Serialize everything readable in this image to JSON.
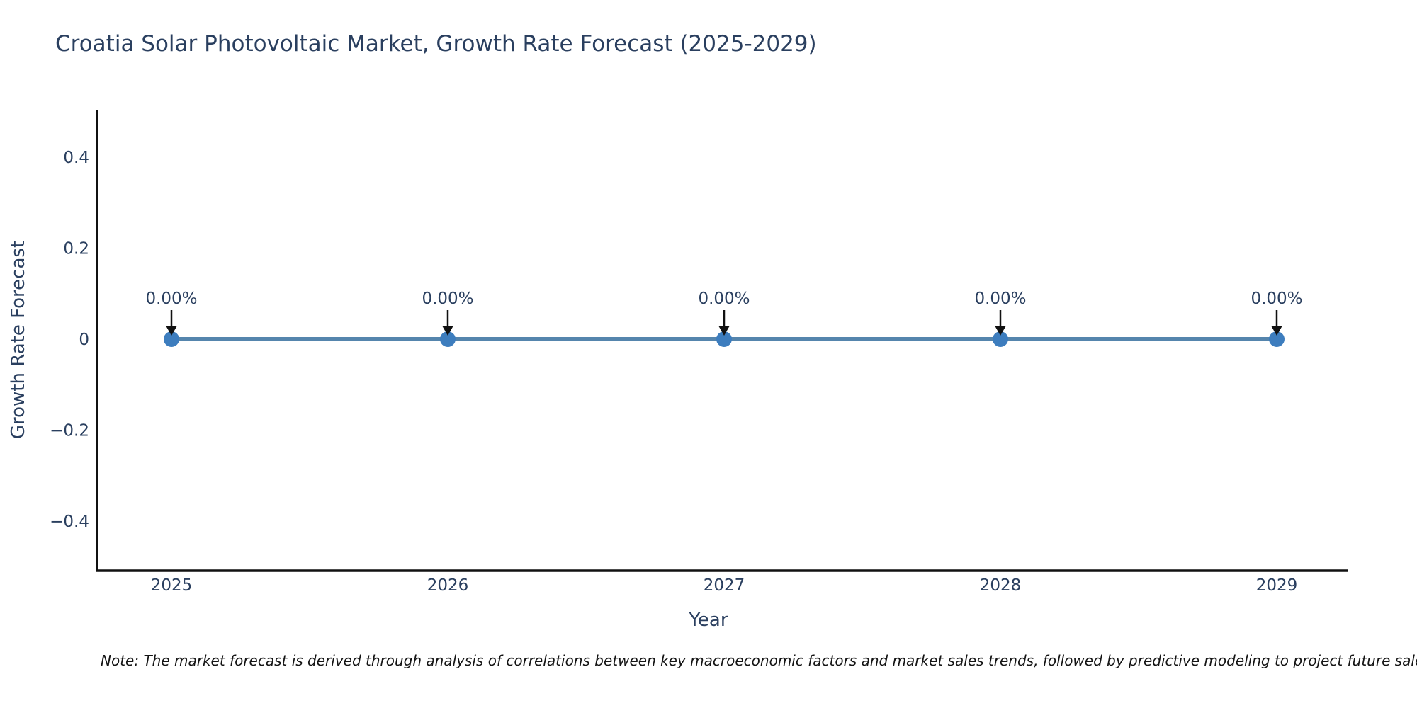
{
  "title": "Croatia Solar Photovoltaic Market, Growth Rate Forecast (2025-2029)",
  "note": "Note: The market forecast is derived through analysis of correlations between key macroeconomic factors and market sales trends, followed by predictive modeling to project future sales",
  "chart_data": {
    "type": "line",
    "title": "Croatia Solar Photovoltaic Market, Growth Rate Forecast (2025-2029)",
    "xlabel": "Year",
    "ylabel": "Growth Rate Forecast",
    "categories": [
      "2025",
      "2026",
      "2027",
      "2028",
      "2029"
    ],
    "series": [
      {
        "name": "Growth Rate Forecast",
        "values": [
          0,
          0,
          0,
          0,
          0
        ],
        "point_labels": [
          "0.00%",
          "0.00%",
          "0.00%",
          "0.00%",
          "0.00%"
        ]
      }
    ],
    "ylim": [
      -0.5,
      0.5
    ],
    "yticks": [
      0.4,
      0.2,
      0,
      -0.2,
      -0.4
    ],
    "ytick_labels": [
      "0.4",
      "0.2",
      "0",
      "−0.2",
      "−0.4"
    ],
    "grid": false,
    "legend_position": "none",
    "annotations_style": "down-arrow",
    "colors": {
      "line": "#5585AD",
      "marker": "#3D7DBE",
      "arrow": "#111111",
      "spine": "#111111",
      "text": "#2a3f5f"
    }
  }
}
